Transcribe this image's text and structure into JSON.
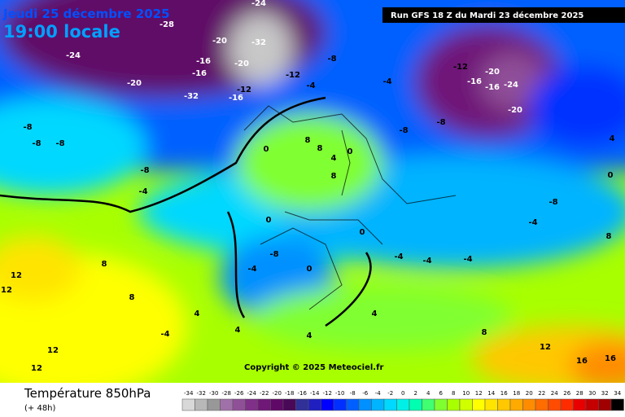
{
  "header": {
    "date": "Jeudi 25 décembre 2025",
    "time": "19:00 locale",
    "run": "Run GFS 18 Z du Mardi 23 décembre 2025",
    "copyright": "Copyright © 2025 Meteociel.fr"
  },
  "footer": {
    "title": "Température 850hPa",
    "lead": "(+ 48h)"
  },
  "scale": {
    "labels": [
      -34,
      -32,
      -30,
      -28,
      -26,
      -24,
      -22,
      -20,
      -18,
      -16,
      -14,
      -12,
      -10,
      -8,
      -6,
      -4,
      -2,
      0,
      2,
      4,
      6,
      8,
      10,
      12,
      14,
      16,
      18,
      20,
      22,
      24,
      26,
      28,
      30,
      32,
      34
    ],
    "colors": [
      "#d8d8d8",
      "#b8b8b8",
      "#989898",
      "#a070a8",
      "#905098",
      "#803088",
      "#701878",
      "#600868",
      "#4a0858",
      "#303098",
      "#2020c0",
      "#0000ff",
      "#0030ff",
      "#0060ff",
      "#0090ff",
      "#00b4ff",
      "#00d8ff",
      "#00f0e8",
      "#00ffb0",
      "#40ff70",
      "#80ff30",
      "#a8ff00",
      "#d0ff00",
      "#ffff00",
      "#ffe400",
      "#ffc800",
      "#ffaa00",
      "#ff8c00",
      "#ff6c00",
      "#ff4c00",
      "#ff2c00",
      "#e80000",
      "#c40000",
      "#a00000",
      "#000000"
    ]
  },
  "map_labels": [
    -24,
    -20,
    -20,
    -16,
    -16,
    -32,
    -20,
    -12,
    -32,
    -16,
    -12,
    -4,
    -8,
    -4,
    -8,
    -8,
    -12,
    -16,
    -20,
    -24,
    -20,
    -16,
    -8,
    -8,
    -8,
    -8,
    -4,
    0,
    8,
    8,
    8,
    4,
    0,
    -8,
    -4,
    0,
    0,
    0,
    -4,
    -4,
    -4,
    -4,
    -8,
    0,
    4,
    8,
    8,
    12,
    12,
    12,
    12,
    8,
    4,
    4,
    -4,
    4,
    4,
    8,
    12,
    16,
    16,
    -20,
    -24,
    -28
  ]
}
